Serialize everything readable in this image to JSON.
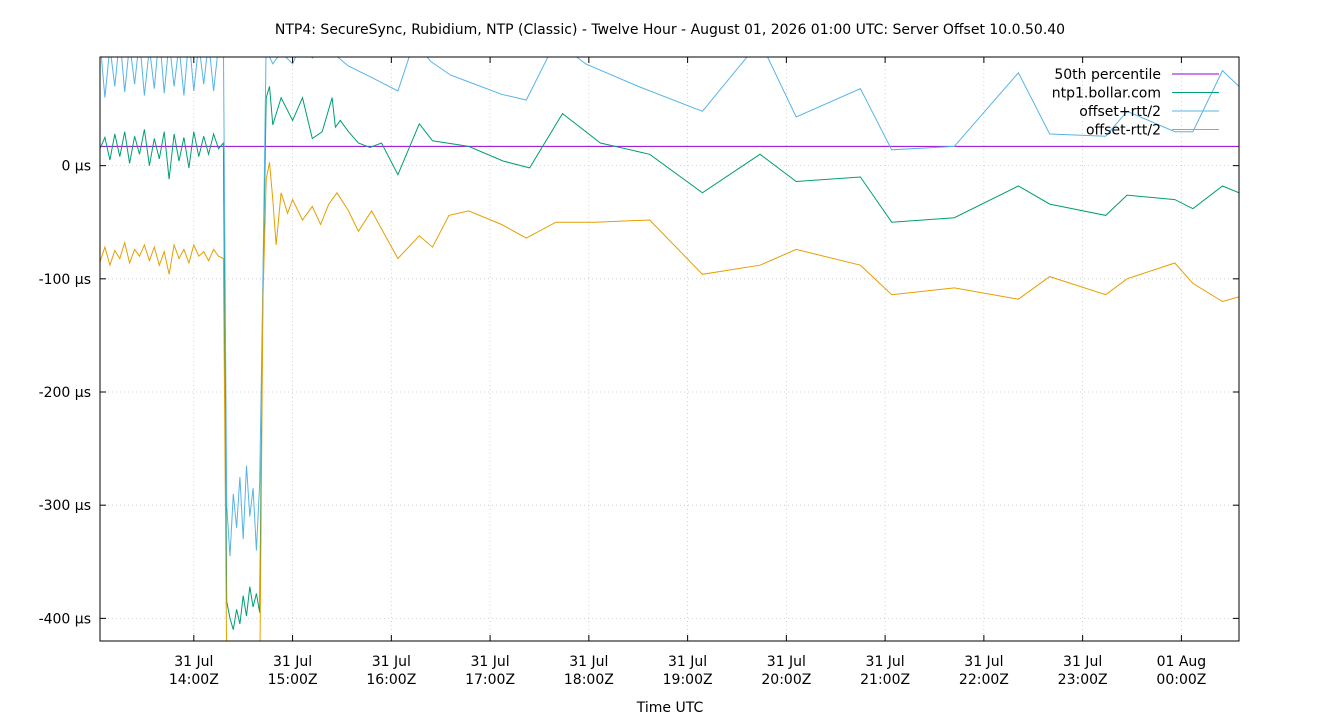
{
  "chart_data": {
    "type": "line",
    "title": "NTP4: SecureSync, Rubidium, NTP (Classic) - Twelve Hour - August 01, 2026 01:00 UTC: Server Offset 10.0.50.40",
    "xlabel": "Time UTC",
    "ylabel": "",
    "grid": true,
    "legend_position": "top-right",
    "xlim": [
      "2026-07-31T13:03Z",
      "2026-08-01T00:35Z"
    ],
    "ylim": [
      -420,
      96
    ],
    "y_ticks": [
      0,
      -100,
      -200,
      -300,
      -400
    ],
    "y_tick_labels": [
      "0 µs",
      "-100 µs",
      "-200 µs",
      "-300 µs",
      "-400 µs"
    ],
    "x_ticks": [
      "2026-07-31T14:00Z",
      "2026-07-31T15:00Z",
      "2026-07-31T16:00Z",
      "2026-07-31T17:00Z",
      "2026-07-31T18:00Z",
      "2026-07-31T19:00Z",
      "2026-07-31T20:00Z",
      "2026-07-31T21:00Z",
      "2026-07-31T22:00Z",
      "2026-07-31T23:00Z",
      "2026-08-01T00:00Z"
    ],
    "x_tick_labels": [
      [
        "31 Jul",
        "14:00Z"
      ],
      [
        "31 Jul",
        "15:00Z"
      ],
      [
        "31 Jul",
        "16:00Z"
      ],
      [
        "31 Jul",
        "17:00Z"
      ],
      [
        "31 Jul",
        "18:00Z"
      ],
      [
        "31 Jul",
        "19:00Z"
      ],
      [
        "31 Jul",
        "20:00Z"
      ],
      [
        "31 Jul",
        "21:00Z"
      ],
      [
        "31 Jul",
        "22:00Z"
      ],
      [
        "31 Jul",
        "23:00Z"
      ],
      [
        "01 Aug",
        "00:00Z"
      ]
    ],
    "series": [
      {
        "name": "50th percentile",
        "color": "#9400d3",
        "points": [
          [
            "2026-07-31T13:03Z",
            17
          ],
          [
            "2026-08-01T00:35Z",
            17
          ]
        ]
      },
      {
        "name": "ntp1.bollar.com",
        "color": "#009e73",
        "points": [
          [
            "2026-07-31T13:03Z",
            15
          ],
          [
            "2026-07-31T13:06Z",
            25
          ],
          [
            "2026-07-31T13:09Z",
            5
          ],
          [
            "2026-07-31T13:12Z",
            28
          ],
          [
            "2026-07-31T13:15Z",
            8
          ],
          [
            "2026-07-31T13:18Z",
            30
          ],
          [
            "2026-07-31T13:21Z",
            2
          ],
          [
            "2026-07-31T13:24Z",
            26
          ],
          [
            "2026-07-31T13:27Z",
            10
          ],
          [
            "2026-07-31T13:30Z",
            32
          ],
          [
            "2026-07-31T13:33Z",
            0
          ],
          [
            "2026-07-31T13:36Z",
            24
          ],
          [
            "2026-07-31T13:39Z",
            6
          ],
          [
            "2026-07-31T13:42Z",
            30
          ],
          [
            "2026-07-31T13:45Z",
            -12
          ],
          [
            "2026-07-31T13:48Z",
            28
          ],
          [
            "2026-07-31T13:51Z",
            4
          ],
          [
            "2026-07-31T13:54Z",
            25
          ],
          [
            "2026-07-31T13:57Z",
            -2
          ],
          [
            "2026-07-31T14:00Z",
            30
          ],
          [
            "2026-07-31T14:03Z",
            8
          ],
          [
            "2026-07-31T14:06Z",
            26
          ],
          [
            "2026-07-31T14:09Z",
            10
          ],
          [
            "2026-07-31T14:12Z",
            28
          ],
          [
            "2026-07-31T14:15Z",
            15
          ],
          [
            "2026-07-31T14:18Z",
            20
          ],
          [
            "2026-07-31T14:20Z",
            -385
          ],
          [
            "2026-07-31T14:22Z",
            -400
          ],
          [
            "2026-07-31T14:24Z",
            -410
          ],
          [
            "2026-07-31T14:26Z",
            -392
          ],
          [
            "2026-07-31T14:28Z",
            -405
          ],
          [
            "2026-07-31T14:30Z",
            -380
          ],
          [
            "2026-07-31T14:32Z",
            -398
          ],
          [
            "2026-07-31T14:34Z",
            -372
          ],
          [
            "2026-07-31T14:36Z",
            -390
          ],
          [
            "2026-07-31T14:38Z",
            -378
          ],
          [
            "2026-07-31T14:40Z",
            -395
          ],
          [
            "2026-07-31T14:42Z",
            -110
          ],
          [
            "2026-07-31T14:44Z",
            60
          ],
          [
            "2026-07-31T14:46Z",
            70
          ],
          [
            "2026-07-31T14:48Z",
            36
          ],
          [
            "2026-07-31T14:53Z",
            60
          ],
          [
            "2026-07-31T15:00Z",
            40
          ],
          [
            "2026-07-31T15:06Z",
            60
          ],
          [
            "2026-07-31T15:12Z",
            24
          ],
          [
            "2026-07-31T15:18Z",
            30
          ],
          [
            "2026-07-31T15:24Z",
            60
          ],
          [
            "2026-07-31T15:26Z",
            34
          ],
          [
            "2026-07-31T15:29Z",
            40
          ],
          [
            "2026-07-31T15:34Z",
            30
          ],
          [
            "2026-07-31T15:40Z",
            20
          ],
          [
            "2026-07-31T15:47Z",
            16
          ],
          [
            "2026-07-31T15:54Z",
            20
          ],
          [
            "2026-07-31T16:04Z",
            -8
          ],
          [
            "2026-07-31T16:17Z",
            37
          ],
          [
            "2026-07-31T16:25Z",
            22
          ],
          [
            "2026-07-31T16:47Z",
            17
          ],
          [
            "2026-07-31T17:08Z",
            4
          ],
          [
            "2026-07-31T17:24Z",
            -2
          ],
          [
            "2026-07-31T17:44Z",
            46
          ],
          [
            "2026-07-31T18:07Z",
            20
          ],
          [
            "2026-07-31T18:37Z",
            10
          ],
          [
            "2026-07-31T19:09Z",
            -24
          ],
          [
            "2026-07-31T19:44Z",
            10
          ],
          [
            "2026-07-31T20:06Z",
            -14
          ],
          [
            "2026-07-31T20:45Z",
            -10
          ],
          [
            "2026-07-31T21:04Z",
            -50
          ],
          [
            "2026-07-31T21:42Z",
            -46
          ],
          [
            "2026-07-31T22:21Z",
            -18
          ],
          [
            "2026-07-31T22:40Z",
            -34
          ],
          [
            "2026-07-31T23:14Z",
            -44
          ],
          [
            "2026-07-31T23:27Z",
            -26
          ],
          [
            "2026-07-31T23:56Z",
            -30
          ],
          [
            "2026-08-01T00:07Z",
            -38
          ],
          [
            "2026-08-01T00:25Z",
            -18
          ],
          [
            "2026-08-01T00:35Z",
            -24
          ]
        ]
      },
      {
        "name": "offset+rtt/2",
        "color": "#56b4e9",
        "points": [
          [
            "2026-07-31T13:03Z",
            110
          ],
          [
            "2026-07-31T13:06Z",
            60
          ],
          [
            "2026-07-31T13:09Z",
            105
          ],
          [
            "2026-07-31T13:12Z",
            70
          ],
          [
            "2026-07-31T13:15Z",
            115
          ],
          [
            "2026-07-31T13:18Z",
            65
          ],
          [
            "2026-07-31T13:21Z",
            108
          ],
          [
            "2026-07-31T13:24Z",
            72
          ],
          [
            "2026-07-31T13:27Z",
            112
          ],
          [
            "2026-07-31T13:30Z",
            62
          ],
          [
            "2026-07-31T13:33Z",
            104
          ],
          [
            "2026-07-31T13:36Z",
            68
          ],
          [
            "2026-07-31T13:39Z",
            118
          ],
          [
            "2026-07-31T13:42Z",
            64
          ],
          [
            "2026-07-31T13:45Z",
            110
          ],
          [
            "2026-07-31T13:48Z",
            70
          ],
          [
            "2026-07-31T13:51Z",
            106
          ],
          [
            "2026-07-31T13:54Z",
            62
          ],
          [
            "2026-07-31T13:57Z",
            114
          ],
          [
            "2026-07-31T14:00Z",
            66
          ],
          [
            "2026-07-31T14:03Z",
            108
          ],
          [
            "2026-07-31T14:06Z",
            72
          ],
          [
            "2026-07-31T14:09Z",
            110
          ],
          [
            "2026-07-31T14:12Z",
            66
          ],
          [
            "2026-07-31T14:15Z",
            106
          ],
          [
            "2026-07-31T14:18Z",
            110
          ],
          [
            "2026-07-31T14:20Z",
            -300
          ],
          [
            "2026-07-31T14:22Z",
            -345
          ],
          [
            "2026-07-31T14:24Z",
            -290
          ],
          [
            "2026-07-31T14:26Z",
            -320
          ],
          [
            "2026-07-31T14:28Z",
            -275
          ],
          [
            "2026-07-31T14:30Z",
            -330
          ],
          [
            "2026-07-31T14:32Z",
            -265
          ],
          [
            "2026-07-31T14:34Z",
            -310
          ],
          [
            "2026-07-31T14:36Z",
            -285
          ],
          [
            "2026-07-31T14:38Z",
            -340
          ],
          [
            "2026-07-31T14:40Z",
            -280
          ],
          [
            "2026-07-31T14:42Z",
            -100
          ],
          [
            "2026-07-31T14:44Z",
            110
          ],
          [
            "2026-07-31T14:46Z",
            96
          ],
          [
            "2026-07-31T14:48Z",
            90
          ],
          [
            "2026-07-31T14:53Z",
            100
          ],
          [
            "2026-07-31T15:00Z",
            90
          ],
          [
            "2026-07-31T15:06Z",
            110
          ],
          [
            "2026-07-31T15:12Z",
            95
          ],
          [
            "2026-07-31T15:20Z",
            105
          ],
          [
            "2026-07-31T15:34Z",
            88
          ],
          [
            "2026-07-31T15:48Z",
            78
          ],
          [
            "2026-07-31T16:04Z",
            66
          ],
          [
            "2026-07-31T16:14Z",
            110
          ],
          [
            "2026-07-31T16:24Z",
            92
          ],
          [
            "2026-07-31T16:36Z",
            80
          ],
          [
            "2026-07-31T16:47Z",
            74
          ],
          [
            "2026-07-31T17:07Z",
            63
          ],
          [
            "2026-07-31T17:22Z",
            58
          ],
          [
            "2026-07-31T17:40Z",
            110
          ],
          [
            "2026-07-31T17:58Z",
            90
          ],
          [
            "2026-07-31T18:30Z",
            70
          ],
          [
            "2026-07-31T19:09Z",
            48
          ],
          [
            "2026-07-31T19:44Z",
            110
          ],
          [
            "2026-07-31T20:06Z",
            43
          ],
          [
            "2026-07-31T20:45Z",
            68
          ],
          [
            "2026-07-31T21:04Z",
            14
          ],
          [
            "2026-07-31T21:42Z",
            17
          ],
          [
            "2026-07-31T22:21Z",
            82
          ],
          [
            "2026-07-31T22:40Z",
            28
          ],
          [
            "2026-07-31T23:14Z",
            26
          ],
          [
            "2026-07-31T23:27Z",
            48
          ],
          [
            "2026-07-31T23:56Z",
            30
          ],
          [
            "2026-08-01T00:07Z",
            30
          ],
          [
            "2026-08-01T00:25Z",
            84
          ],
          [
            "2026-08-01T00:35Z",
            70
          ]
        ]
      },
      {
        "name": "offset-rtt/2",
        "color": "#e69f00",
        "points": [
          [
            "2026-07-31T13:03Z",
            -85
          ],
          [
            "2026-07-31T13:06Z",
            -72
          ],
          [
            "2026-07-31T13:09Z",
            -88
          ],
          [
            "2026-07-31T13:12Z",
            -75
          ],
          [
            "2026-07-31T13:15Z",
            -82
          ],
          [
            "2026-07-31T13:18Z",
            -68
          ],
          [
            "2026-07-31T13:21Z",
            -86
          ],
          [
            "2026-07-31T13:24Z",
            -74
          ],
          [
            "2026-07-31T13:27Z",
            -80
          ],
          [
            "2026-07-31T13:30Z",
            -70
          ],
          [
            "2026-07-31T13:33Z",
            -84
          ],
          [
            "2026-07-31T13:36Z",
            -72
          ],
          [
            "2026-07-31T13:39Z",
            -88
          ],
          [
            "2026-07-31T13:42Z",
            -76
          ],
          [
            "2026-07-31T13:45Z",
            -96
          ],
          [
            "2026-07-31T13:48Z",
            -70
          ],
          [
            "2026-07-31T13:51Z",
            -82
          ],
          [
            "2026-07-31T13:54Z",
            -74
          ],
          [
            "2026-07-31T13:57Z",
            -86
          ],
          [
            "2026-07-31T14:00Z",
            -70
          ],
          [
            "2026-07-31T14:03Z",
            -80
          ],
          [
            "2026-07-31T14:06Z",
            -76
          ],
          [
            "2026-07-31T14:09Z",
            -84
          ],
          [
            "2026-07-31T14:12Z",
            -74
          ],
          [
            "2026-07-31T14:15Z",
            -80
          ],
          [
            "2026-07-31T14:18Z",
            -82
          ],
          [
            "2026-07-31T14:20Z",
            -440
          ],
          [
            "2026-07-31T14:22Z",
            -470
          ],
          [
            "2026-07-31T14:24Z",
            -450
          ],
          [
            "2026-07-31T14:40Z",
            -460
          ],
          [
            "2026-07-31T14:42Z",
            -120
          ],
          [
            "2026-07-31T14:44Z",
            -12
          ],
          [
            "2026-07-31T14:46Z",
            3
          ],
          [
            "2026-07-31T14:48Z",
            -30
          ],
          [
            "2026-07-31T14:50Z",
            -70
          ],
          [
            "2026-07-31T14:53Z",
            -24
          ],
          [
            "2026-07-31T14:57Z",
            -42
          ],
          [
            "2026-07-31T15:00Z",
            -30
          ],
          [
            "2026-07-31T15:06Z",
            -48
          ],
          [
            "2026-07-31T15:12Z",
            -36
          ],
          [
            "2026-07-31T15:17Z",
            -52
          ],
          [
            "2026-07-31T15:22Z",
            -34
          ],
          [
            "2026-07-31T15:27Z",
            -24
          ],
          [
            "2026-07-31T15:34Z",
            -40
          ],
          [
            "2026-07-31T15:40Z",
            -58
          ],
          [
            "2026-07-31T15:48Z",
            -40
          ],
          [
            "2026-07-31T16:04Z",
            -82
          ],
          [
            "2026-07-31T16:17Z",
            -62
          ],
          [
            "2026-07-31T16:25Z",
            -72
          ],
          [
            "2026-07-31T16:35Z",
            -44
          ],
          [
            "2026-07-31T16:47Z",
            -40
          ],
          [
            "2026-07-31T17:07Z",
            -52
          ],
          [
            "2026-07-31T17:22Z",
            -64
          ],
          [
            "2026-07-31T17:40Z",
            -50
          ],
          [
            "2026-07-31T18:04Z",
            -50
          ],
          [
            "2026-07-31T18:37Z",
            -48
          ],
          [
            "2026-07-31T19:09Z",
            -96
          ],
          [
            "2026-07-31T19:44Z",
            -88
          ],
          [
            "2026-07-31T20:06Z",
            -74
          ],
          [
            "2026-07-31T20:45Z",
            -88
          ],
          [
            "2026-07-31T21:04Z",
            -114
          ],
          [
            "2026-07-31T21:42Z",
            -108
          ],
          [
            "2026-07-31T22:21Z",
            -118
          ],
          [
            "2026-07-31T22:40Z",
            -98
          ],
          [
            "2026-07-31T23:14Z",
            -114
          ],
          [
            "2026-07-31T23:27Z",
            -100
          ],
          [
            "2026-07-31T23:56Z",
            -86
          ],
          [
            "2026-08-01T00:07Z",
            -104
          ],
          [
            "2026-08-01T00:25Z",
            -120
          ],
          [
            "2026-08-01T00:35Z",
            -116
          ]
        ]
      }
    ]
  }
}
